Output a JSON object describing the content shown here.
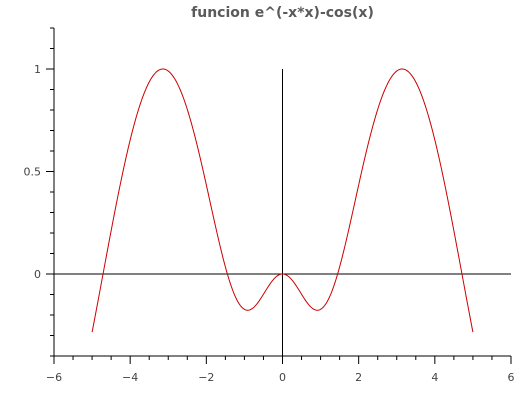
{
  "chart_data": {
    "type": "line",
    "title": "funcion e^(-x*x)-cos(x)",
    "xlabel": "",
    "ylabel": "",
    "xlim": [
      -6,
      6
    ],
    "ylim": [
      -0.4,
      1.2
    ],
    "x_ticks": [
      -6,
      -4,
      -2,
      0,
      2,
      4,
      6
    ],
    "x_tick_labels": [
      "−6",
      "−4",
      "−2",
      "0",
      "2",
      "4",
      "6"
    ],
    "y_ticks": [
      0,
      0.5,
      1
    ],
    "y_tick_labels": [
      "0",
      "0.5",
      "1"
    ],
    "x_minor_step": 0.5,
    "y_minor_step": 0.1,
    "grid": false,
    "series": [
      {
        "expression": "e^(-x*x)-cos(x)",
        "domain": [
          -5,
          5
        ],
        "color": "#cc0000",
        "x": [
          -5,
          -4.75,
          -4.5,
          -4.25,
          -4,
          -3.75,
          -3.5,
          -3.25,
          -3,
          -2.75,
          -2.5,
          -2.25,
          -2,
          -1.75,
          -1.5,
          -1.25,
          -1,
          -0.75,
          -0.5,
          -0.25,
          0,
          0.25,
          0.5,
          0.75,
          1,
          1.25,
          1.5,
          1.75,
          2,
          2.25,
          2.5,
          2.75,
          3,
          3.25,
          3.5,
          3.75,
          4,
          4.25,
          4.5,
          4.75,
          5
        ],
        "y": [
          -0.284,
          -0.037,
          0.211,
          0.446,
          0.654,
          0.82,
          0.936,
          0.994,
          0.99,
          0.925,
          0.803,
          0.634,
          0.434,
          0.225,
          0.035,
          -0.106,
          -0.172,
          -0.162,
          -0.099,
          -0.029,
          0,
          -0.029,
          -0.099,
          -0.162,
          -0.172,
          -0.106,
          0.035,
          0.225,
          0.434,
          0.634,
          0.803,
          0.925,
          0.99,
          0.994,
          0.936,
          0.82,
          0.654,
          0.446,
          0.211,
          -0.037,
          -0.284
        ]
      }
    ]
  }
}
